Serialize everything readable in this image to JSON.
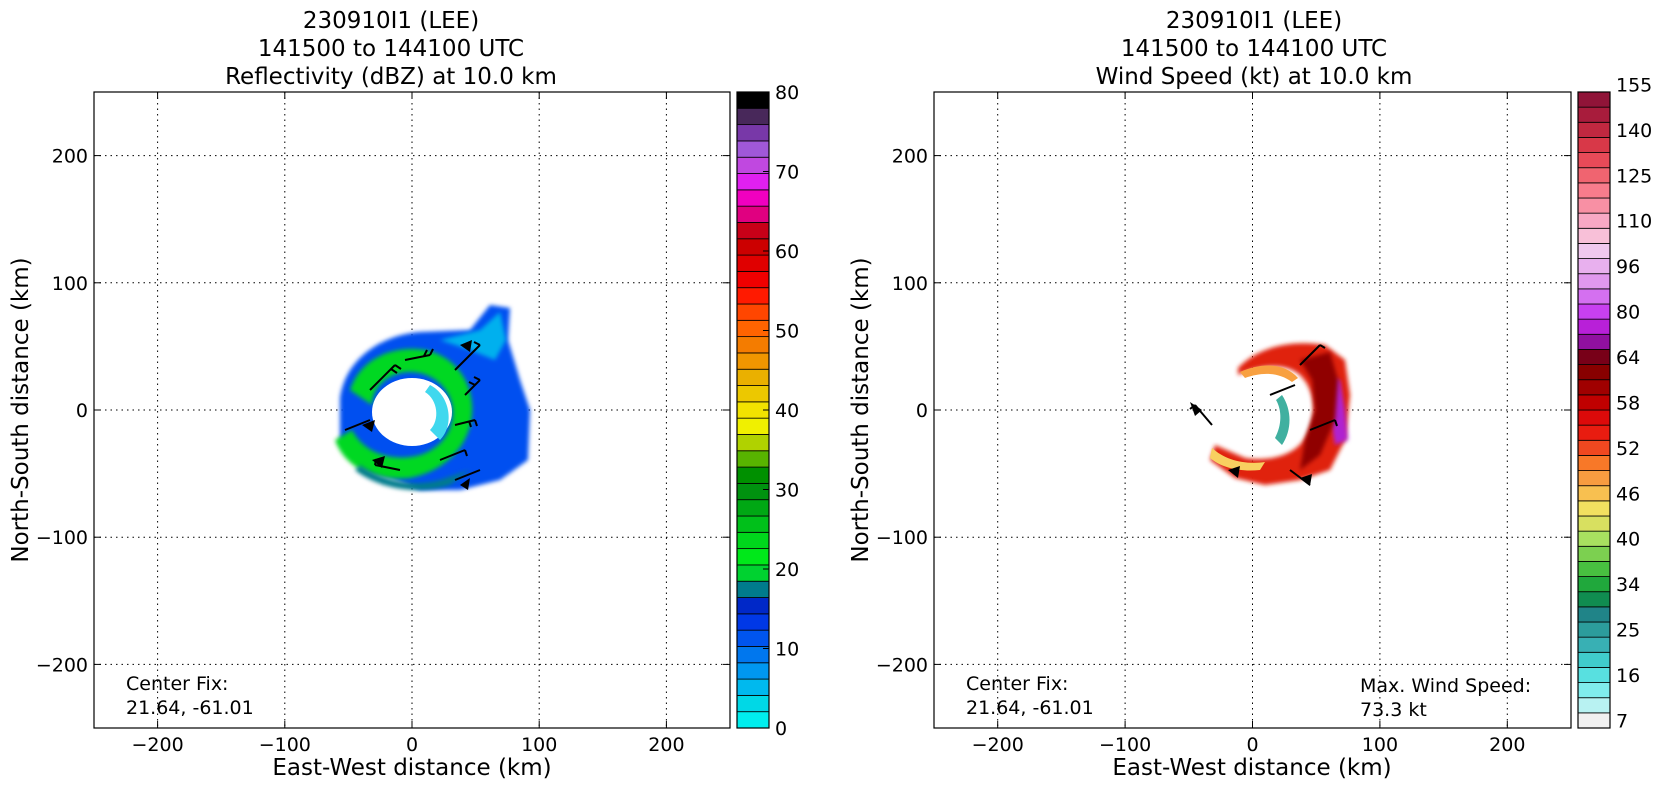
{
  "left_panel": {
    "title_lines": [
      "230910I1 (LEE)",
      "141500 to 144100 UTC",
      "Reflectivity (dBZ) at 10.0 km"
    ],
    "center_fix_label": "Center Fix:",
    "center_fix_value": "21.64, -61.01"
  },
  "right_panel": {
    "title_lines": [
      "230910I1 (LEE)",
      "141500 to 144100 UTC",
      "Wind Speed (kt) at 10.0 km"
    ],
    "center_fix_label": "Center Fix:",
    "center_fix_value": "21.64, -61.01",
    "max_wind_label": "Max. Wind Speed:",
    "max_wind_value": "73.3 kt"
  },
  "chart_data": [
    {
      "type": "heatmap",
      "title": "230910I1 (LEE)\n141500 to 144100 UTC\nReflectivity (dBZ) at 10.0 km",
      "xlabel": "East-West distance (km)",
      "ylabel": "North-South distance (km)",
      "xlim": [
        -250,
        250
      ],
      "ylim": [
        -250,
        250
      ],
      "xticks": [
        -200,
        -100,
        0,
        100,
        200
      ],
      "yticks": [
        -200,
        -100,
        0,
        100,
        200
      ],
      "xtick_labels": [
        "−200",
        "−100",
        "0",
        "100",
        "200"
      ],
      "ytick_labels": [
        "−200",
        "−100",
        "0",
        "100",
        "200"
      ],
      "grid": true,
      "colorbar": {
        "min": 0,
        "max": 80,
        "ticks": [
          0,
          10,
          20,
          30,
          40,
          50,
          60,
          70,
          80
        ],
        "colors": [
          "#00eeee",
          "#00d8e6",
          "#00b9ee",
          "#0097f0",
          "#0077ee",
          "#0055ee",
          "#0038e6",
          "#0028c8",
          "#007b8c",
          "#00d230",
          "#00e81a",
          "#00d61c",
          "#00c01a",
          "#00a814",
          "#00920f",
          "#009000",
          "#58b400",
          "#b0d200",
          "#f0f000",
          "#f2e200",
          "#ecc800",
          "#eab000",
          "#f09600",
          "#f47c00",
          "#ff6400",
          "#ff4600",
          "#ff1a00",
          "#f00000",
          "#e00000",
          "#cc0000",
          "#c80018",
          "#e00080",
          "#f000c0",
          "#e020f0",
          "#c048e0",
          "#a058d8",
          "#7838a8",
          "#48285a",
          "#000000"
        ]
      },
      "echo_description": "Spiral-shaped echo region roughly 60 km around center with embedded wind barbs"
    },
    {
      "type": "heatmap",
      "title": "230910I1 (LEE)\n141500 to 144100 UTC\nWind Speed (kt) at 10.0 km",
      "xlabel": "East-West distance (km)",
      "ylabel": "North-South distance (km)",
      "xlim": [
        -250,
        250
      ],
      "ylim": [
        -250,
        250
      ],
      "xticks": [
        -200,
        -100,
        0,
        100,
        200
      ],
      "yticks": [
        -200,
        -100,
        0,
        100,
        200
      ],
      "xtick_labels": [
        "−200",
        "−100",
        "0",
        "100",
        "200"
      ],
      "ytick_labels": [
        "−200",
        "−100",
        "0",
        "100",
        "200"
      ],
      "grid": true,
      "colorbar": {
        "labels": [
          "7",
          "16",
          "25",
          "34",
          "40",
          "46",
          "52",
          "58",
          "64",
          "80",
          "96",
          "110",
          "125",
          "140",
          "155"
        ],
        "colors": [
          "#f0f0f0",
          "#b8f2f2",
          "#80ecec",
          "#58e0e0",
          "#40cccc",
          "#38b0b4",
          "#2c9c9c",
          "#208488",
          "#108c50",
          "#20a83c",
          "#48c040",
          "#7cd050",
          "#a8e060",
          "#d8e060",
          "#f2e060",
          "#f8c050",
          "#f89c40",
          "#f87828",
          "#f04820",
          "#e81c10",
          "#dc0a0a",
          "#c00000",
          "#a00000",
          "#880000",
          "#780018",
          "#9010a0",
          "#b820d8",
          "#c840f0",
          "#d470f0",
          "#e098ee",
          "#e8b0ee",
          "#f0c8ee",
          "#f8c0d8",
          "#f8a8c4",
          "#f890a4",
          "#f87c8c",
          "#f06470",
          "#e84a58",
          "#d83848",
          "#c02840",
          "#a81c3c",
          "#901438"
        ]
      },
      "max_wind_kt": 73.3
    }
  ]
}
